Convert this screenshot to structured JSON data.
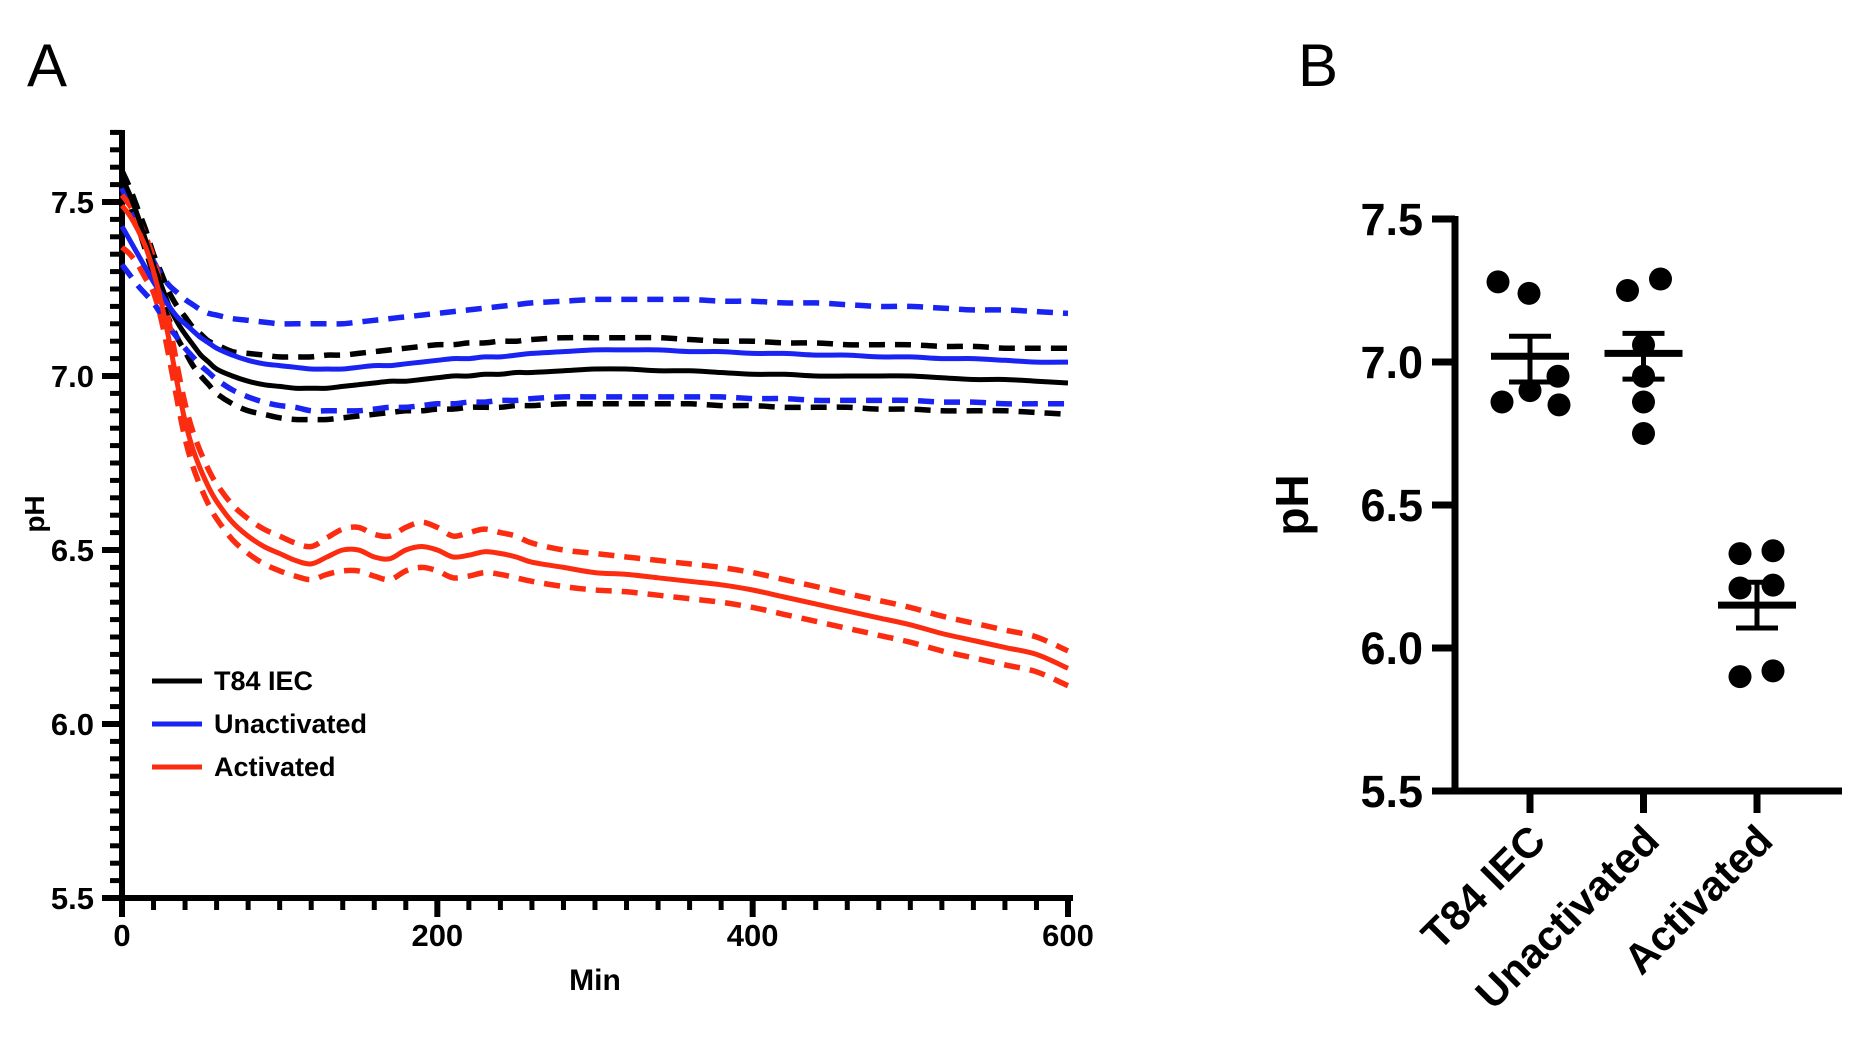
{
  "figure": {
    "panel_a_letter": "A",
    "panel_b_letter": "B"
  },
  "colors": {
    "black": "#000000",
    "blue": "#1923f2",
    "red": "#fb2c10",
    "background": "#ffffff"
  },
  "chart_data": [
    {
      "type": "line",
      "panel": "A",
      "title": "",
      "xlabel": "Min",
      "ylabel": "pH",
      "xlim": [
        0,
        600
      ],
      "ylim": [
        5.5,
        7.7
      ],
      "grid": false,
      "legend_position": "lower-left",
      "x_ticks": [
        0,
        200,
        400,
        600
      ],
      "x_tick_labels": [
        "0",
        "200",
        "400",
        "600"
      ],
      "x_minor_step": 20,
      "y_ticks": [
        5.5,
        6.0,
        6.5,
        7.0,
        7.5
      ],
      "y_tick_labels": [
        "5.5",
        "6.0",
        "6.5",
        "7.0",
        "7.5"
      ],
      "y_minor_step": 0.05,
      "legend": [
        {
          "label": "T84 IEC",
          "color": "#000000"
        },
        {
          "label": "Unactivated",
          "color": "#1923f2"
        },
        {
          "label": "Activated",
          "color": "#fb2c10"
        }
      ],
      "x": [
        0,
        5,
        10,
        15,
        20,
        25,
        30,
        35,
        40,
        45,
        50,
        55,
        60,
        70,
        80,
        90,
        100,
        110,
        120,
        130,
        140,
        150,
        160,
        170,
        180,
        190,
        200,
        210,
        220,
        230,
        240,
        250,
        260,
        280,
        300,
        320,
        340,
        360,
        380,
        400,
        420,
        440,
        460,
        480,
        500,
        520,
        540,
        560,
        580,
        600
      ],
      "series": [
        {
          "name": "T84 IEC",
          "color": "#000000",
          "style": "solid",
          "role": "mean",
          "values": [
            7.57,
            7.52,
            7.46,
            7.39,
            7.32,
            7.26,
            7.2,
            7.155,
            7.12,
            7.09,
            7.06,
            7.04,
            7.02,
            7.0,
            6.985,
            6.975,
            6.97,
            6.965,
            6.965,
            6.965,
            6.97,
            6.975,
            6.98,
            6.985,
            6.985,
            6.99,
            6.995,
            7.0,
            7.0,
            7.005,
            7.005,
            7.01,
            7.01,
            7.015,
            7.02,
            7.02,
            7.015,
            7.015,
            7.01,
            7.005,
            7.005,
            7.0,
            7.0,
            7.0,
            7.0,
            6.995,
            6.99,
            6.99,
            6.985,
            6.98
          ]
        },
        {
          "name": "T84 IEC +SEM",
          "color": "#000000",
          "style": "dashed",
          "role": "sem-upper",
          "values": [
            7.59,
            7.54,
            7.48,
            7.42,
            7.35,
            7.295,
            7.24,
            7.2,
            7.17,
            7.14,
            7.12,
            7.1,
            7.09,
            7.07,
            7.065,
            7.06,
            7.055,
            7.055,
            7.055,
            7.06,
            7.06,
            7.065,
            7.07,
            7.075,
            7.08,
            7.085,
            7.09,
            7.09,
            7.095,
            7.095,
            7.1,
            7.1,
            7.105,
            7.11,
            7.11,
            7.11,
            7.11,
            7.105,
            7.1,
            7.1,
            7.095,
            7.095,
            7.09,
            7.09,
            7.09,
            7.085,
            7.085,
            7.08,
            7.08,
            7.08
          ]
        },
        {
          "name": "T84 IEC -SEM",
          "color": "#000000",
          "style": "dashed",
          "role": "sem-lower",
          "values": [
            7.55,
            7.49,
            7.43,
            7.36,
            7.29,
            7.22,
            7.16,
            7.11,
            7.07,
            7.03,
            7.0,
            6.975,
            6.95,
            6.92,
            6.9,
            6.89,
            6.88,
            6.875,
            6.875,
            6.875,
            6.88,
            6.885,
            6.89,
            6.895,
            6.9,
            6.9,
            6.905,
            6.905,
            6.91,
            6.91,
            6.91,
            6.915,
            6.915,
            6.92,
            6.92,
            6.92,
            6.92,
            6.92,
            6.915,
            6.915,
            6.91,
            6.91,
            6.91,
            6.905,
            6.905,
            6.9,
            6.9,
            6.9,
            6.895,
            6.89
          ]
        },
        {
          "name": "Unactivated",
          "color": "#1923f2",
          "style": "solid",
          "role": "mean",
          "values": [
            7.43,
            7.39,
            7.35,
            7.31,
            7.27,
            7.235,
            7.2,
            7.17,
            7.15,
            7.13,
            7.11,
            7.095,
            7.08,
            7.06,
            7.045,
            7.035,
            7.03,
            7.025,
            7.02,
            7.02,
            7.02,
            7.025,
            7.03,
            7.03,
            7.035,
            7.04,
            7.045,
            7.05,
            7.05,
            7.055,
            7.055,
            7.06,
            7.065,
            7.07,
            7.075,
            7.075,
            7.075,
            7.07,
            7.07,
            7.065,
            7.065,
            7.06,
            7.06,
            7.055,
            7.055,
            7.05,
            7.05,
            7.045,
            7.04,
            7.04
          ]
        },
        {
          "name": "Unactivated +SEM",
          "color": "#1923f2",
          "style": "dashed",
          "role": "sem-upper",
          "values": [
            7.54,
            7.48,
            7.43,
            7.38,
            7.33,
            7.29,
            7.26,
            7.24,
            7.22,
            7.205,
            7.19,
            7.18,
            7.175,
            7.165,
            7.16,
            7.155,
            7.15,
            7.15,
            7.15,
            7.15,
            7.15,
            7.155,
            7.16,
            7.165,
            7.17,
            7.175,
            7.18,
            7.185,
            7.19,
            7.195,
            7.2,
            7.205,
            7.21,
            7.215,
            7.22,
            7.22,
            7.22,
            7.22,
            7.215,
            7.215,
            7.21,
            7.21,
            7.205,
            7.2,
            7.2,
            7.195,
            7.19,
            7.19,
            7.185,
            7.18
          ]
        },
        {
          "name": "Unactivated -SEM",
          "color": "#1923f2",
          "style": "dashed",
          "role": "sem-lower",
          "values": [
            7.32,
            7.29,
            7.26,
            7.235,
            7.21,
            7.175,
            7.14,
            7.11,
            7.08,
            7.055,
            7.03,
            7.01,
            6.99,
            6.96,
            6.94,
            6.925,
            6.915,
            6.91,
            6.9,
            6.9,
            6.9,
            6.9,
            6.905,
            6.91,
            6.91,
            6.915,
            6.92,
            6.92,
            6.925,
            6.925,
            6.93,
            6.93,
            6.935,
            6.94,
            6.94,
            6.94,
            6.94,
            6.94,
            6.94,
            6.935,
            6.935,
            6.93,
            6.93,
            6.93,
            6.93,
            6.925,
            6.925,
            6.92,
            6.92,
            6.92
          ]
        },
        {
          "name": "Activated",
          "color": "#fb2c10",
          "style": "solid",
          "role": "mean",
          "values": [
            7.49,
            7.46,
            7.42,
            7.37,
            7.3,
            7.21,
            7.1,
            6.98,
            6.87,
            6.79,
            6.73,
            6.68,
            6.64,
            6.58,
            6.54,
            6.51,
            6.49,
            6.47,
            6.46,
            6.48,
            6.5,
            6.5,
            6.48,
            6.475,
            6.5,
            6.51,
            6.5,
            6.48,
            6.485,
            6.495,
            6.49,
            6.48,
            6.465,
            6.45,
            6.435,
            6.43,
            6.42,
            6.41,
            6.4,
            6.385,
            6.365,
            6.345,
            6.325,
            6.305,
            6.285,
            6.26,
            6.24,
            6.22,
            6.2,
            6.16
          ]
        },
        {
          "name": "Activated +SEM",
          "color": "#fb2c10",
          "style": "dashed",
          "role": "sem-upper",
          "values": [
            7.52,
            7.49,
            7.45,
            7.4,
            7.34,
            7.25,
            7.15,
            7.03,
            6.92,
            6.84,
            6.78,
            6.73,
            6.69,
            6.63,
            6.59,
            6.56,
            6.54,
            6.52,
            6.51,
            6.535,
            6.56,
            6.565,
            6.545,
            6.54,
            6.565,
            6.58,
            6.565,
            6.54,
            6.55,
            6.56,
            6.55,
            6.54,
            6.52,
            6.5,
            6.49,
            6.48,
            6.47,
            6.46,
            6.45,
            6.435,
            6.415,
            6.395,
            6.375,
            6.355,
            6.335,
            6.31,
            6.29,
            6.27,
            6.25,
            6.21
          ]
        },
        {
          "name": "Activated -SEM",
          "color": "#fb2c10",
          "style": "dashed",
          "role": "sem-lower",
          "values": [
            7.37,
            7.35,
            7.32,
            7.28,
            7.24,
            7.16,
            7.05,
            6.93,
            6.82,
            6.74,
            6.68,
            6.63,
            6.59,
            6.53,
            6.49,
            6.46,
            6.44,
            6.425,
            6.415,
            6.43,
            6.44,
            6.44,
            6.425,
            6.415,
            6.44,
            6.45,
            6.44,
            6.42,
            6.425,
            6.435,
            6.43,
            6.42,
            6.41,
            6.395,
            6.385,
            6.38,
            6.37,
            6.36,
            6.35,
            6.335,
            6.315,
            6.295,
            6.275,
            6.255,
            6.235,
            6.21,
            6.19,
            6.17,
            6.15,
            6.11
          ]
        }
      ]
    },
    {
      "type": "scatter",
      "panel": "B",
      "title": "",
      "xlabel": "",
      "ylabel": "pH",
      "ylim": [
        5.5,
        7.5
      ],
      "grid": false,
      "y_ticks": [
        5.5,
        6.0,
        6.5,
        7.0,
        7.5
      ],
      "y_tick_labels": [
        "5.5",
        "6.0",
        "6.5",
        "7.0",
        "7.5"
      ],
      "groups": [
        {
          "label": "T84 IEC",
          "mean": 7.02,
          "sem_low": 6.93,
          "sem_high": 7.09,
          "points": [
            {
              "value": 7.28,
              "dx": -32
            },
            {
              "value": 7.24,
              "dx": -1
            },
            {
              "value": 6.95,
              "dx": 28
            },
            {
              "value": 6.9,
              "dx": 0
            },
            {
              "value": 6.86,
              "dx": -28
            },
            {
              "value": 6.85,
              "dx": 29
            }
          ]
        },
        {
          "label": "Unactivated",
          "mean": 7.03,
          "sem_low": 6.94,
          "sem_high": 7.1,
          "points": [
            {
              "value": 7.29,
              "dx": 17
            },
            {
              "value": 7.25,
              "dx": -16
            },
            {
              "value": 7.06,
              "dx": 0
            },
            {
              "value": 6.95,
              "dx": 0
            },
            {
              "value": 6.86,
              "dx": 0
            },
            {
              "value": 6.75,
              "dx": 0
            }
          ]
        },
        {
          "label": "Activated",
          "mean": 6.15,
          "sem_low": 6.07,
          "sem_high": 6.23,
          "points": [
            {
              "value": 6.33,
              "dx": -17
            },
            {
              "value": 6.34,
              "dx": 16
            },
            {
              "value": 6.21,
              "dx": -17
            },
            {
              "value": 6.22,
              "dx": 16
            },
            {
              "value": 5.9,
              "dx": -17
            },
            {
              "value": 5.92,
              "dx": 16
            }
          ]
        }
      ]
    }
  ]
}
